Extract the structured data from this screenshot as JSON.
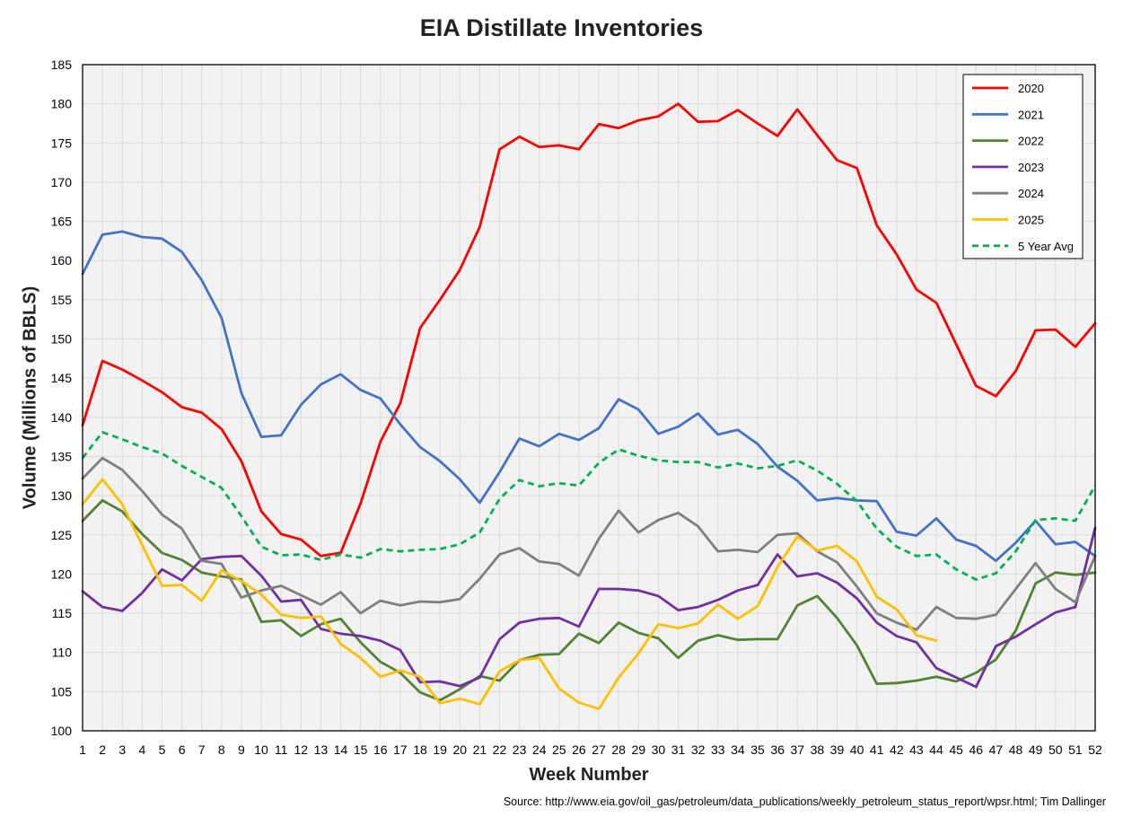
{
  "chart_data": {
    "type": "line",
    "title": "EIA Distillate Inventories",
    "xlabel": "Week Number",
    "ylabel": "Volume (Millions of BBLS)",
    "source": "Source: http://www.eia.gov/oil_gas/petroleum/data_publications/weekly_petroleum_status_report/wpsr.html; Tim Dallinger",
    "ylim": [
      100,
      185
    ],
    "yticks": [
      100,
      105,
      110,
      115,
      120,
      125,
      130,
      135,
      140,
      145,
      150,
      155,
      160,
      165,
      170,
      175,
      180,
      185
    ],
    "xlim": [
      1,
      52
    ],
    "xticks": [
      1,
      2,
      3,
      4,
      5,
      6,
      7,
      8,
      9,
      10,
      11,
      12,
      13,
      14,
      15,
      16,
      17,
      18,
      19,
      20,
      21,
      22,
      23,
      24,
      25,
      26,
      27,
      28,
      29,
      30,
      31,
      32,
      33,
      34,
      35,
      36,
      37,
      38,
      39,
      40,
      41,
      42,
      43,
      44,
      45,
      46,
      47,
      48,
      49,
      50,
      51,
      52
    ],
    "grid": true,
    "legend_position": "top-right",
    "series": [
      {
        "name": "2020",
        "color": "#ff0000",
        "dashed": false,
        "values": [
          139.0,
          147.2,
          146.1,
          144.7,
          143.2,
          141.3,
          140.6,
          138.5,
          134.4,
          128.0,
          125.1,
          124.4,
          122.3,
          122.7,
          129.0,
          136.9,
          141.8,
          151.4,
          155.0,
          158.8,
          164.3,
          174.2,
          175.8,
          174.5,
          174.7,
          174.2,
          177.4,
          176.9,
          177.9,
          178.4,
          180.0,
          177.7,
          177.8,
          179.2,
          177.5,
          175.9,
          179.3,
          176.0,
          172.8,
          171.8,
          164.5,
          160.8,
          156.3,
          154.6,
          149.3,
          144.0,
          142.7,
          145.9,
          151.1,
          151.2,
          149.0,
          152.0
        ]
      },
      {
        "name": "2021",
        "color": "#4472c4",
        "dashed": false,
        "values": [
          158.3,
          163.3,
          163.7,
          163.0,
          162.8,
          161.1,
          157.5,
          152.7,
          143.1,
          137.5,
          137.7,
          141.6,
          144.2,
          145.5,
          143.5,
          142.4,
          139.1,
          136.2,
          134.4,
          132.1,
          129.1,
          133.0,
          137.3,
          136.3,
          137.9,
          137.1,
          138.6,
          142.3,
          141.0,
          137.9,
          138.8,
          140.5,
          137.8,
          138.4,
          136.6,
          133.7,
          131.9,
          129.4,
          129.7,
          129.4,
          129.3,
          125.4,
          124.9,
          127.1,
          124.4,
          123.6,
          121.7,
          124.0,
          126.8,
          123.8,
          124.1,
          122.3
        ]
      },
      {
        "name": "2022",
        "color": "#548235",
        "dashed": false,
        "values": [
          126.8,
          129.4,
          128.0,
          125.1,
          122.7,
          121.8,
          120.2,
          119.7,
          119.3,
          113.9,
          114.1,
          112.1,
          113.6,
          114.3,
          111.3,
          108.8,
          107.4,
          104.9,
          103.9,
          105.3,
          107.0,
          106.4,
          109.0,
          109.7,
          109.8,
          112.4,
          111.2,
          113.8,
          112.5,
          111.8,
          109.3,
          111.5,
          112.2,
          111.6,
          111.7,
          111.7,
          116.0,
          117.2,
          114.4,
          110.9,
          106.0,
          106.1,
          106.4,
          106.9,
          106.3,
          107.4,
          109.1,
          112.8,
          118.8,
          120.2,
          119.9,
          120.2
        ]
      },
      {
        "name": "2023",
        "color": "#7030a0",
        "dashed": false,
        "values": [
          117.8,
          115.8,
          115.3,
          117.6,
          120.6,
          119.2,
          121.9,
          122.2,
          122.3,
          119.8,
          116.5,
          116.7,
          113.0,
          112.4,
          112.1,
          111.5,
          110.3,
          106.2,
          106.3,
          105.7,
          106.8,
          111.7,
          113.8,
          114.3,
          114.4,
          113.3,
          118.1,
          118.1,
          117.9,
          117.2,
          115.4,
          115.8,
          116.7,
          117.9,
          118.6,
          122.5,
          119.7,
          120.1,
          118.9,
          116.9,
          113.8,
          112.1,
          111.3,
          108.0,
          106.8,
          105.6,
          110.8,
          112.0,
          113.6,
          115.1,
          115.8,
          125.9
        ]
      },
      {
        "name": "2024",
        "color": "#7f7f7f",
        "dashed": false,
        "values": [
          132.2,
          134.8,
          133.3,
          130.6,
          127.6,
          125.8,
          121.7,
          121.3,
          117.0,
          117.9,
          118.5,
          117.3,
          116.1,
          117.7,
          115.0,
          116.6,
          116.0,
          116.5,
          116.4,
          116.8,
          119.4,
          122.5,
          123.3,
          121.6,
          121.3,
          119.8,
          124.5,
          128.1,
          125.3,
          126.9,
          127.8,
          126.1,
          122.9,
          123.1,
          122.8,
          125.0,
          125.2,
          122.9,
          121.5,
          118.4,
          115.0,
          113.8,
          112.9,
          115.8,
          114.4,
          114.3,
          114.8,
          118.1,
          121.4,
          118.1,
          116.4,
          122.3
        ]
      },
      {
        "name": "2025",
        "color": "#ffc000",
        "dashed": false,
        "values": [
          128.9,
          132.1,
          128.9,
          123.7,
          118.5,
          118.6,
          116.6,
          120.5,
          119.1,
          117.4,
          114.8,
          114.4,
          114.6,
          111.1,
          109.3,
          106.9,
          107.7,
          106.9,
          103.5,
          104.1,
          103.4,
          107.6,
          109.0,
          109.3,
          105.4,
          103.6,
          102.8,
          106.8,
          109.9,
          113.6,
          113.1,
          113.7,
          116.1,
          114.3,
          115.9,
          120.9,
          124.8,
          123.0,
          123.6,
          121.6,
          117.1,
          115.5,
          112.2,
          111.5
        ]
      },
      {
        "name": "5 Year Avg",
        "color": "#00b050",
        "dashed": true,
        "values": [
          134.8,
          138.1,
          137.2,
          136.2,
          135.4,
          133.8,
          132.4,
          131.0,
          127.4,
          123.5,
          122.4,
          122.5,
          121.8,
          122.5,
          122.1,
          123.2,
          122.9,
          123.1,
          123.2,
          123.8,
          125.3,
          129.6,
          132.0,
          131.2,
          131.6,
          131.3,
          134.2,
          135.9,
          135.1,
          134.5,
          134.3,
          134.3,
          133.6,
          134.1,
          133.5,
          133.8,
          134.5,
          133.2,
          131.5,
          129.3,
          125.8,
          123.5,
          122.3,
          122.5,
          120.6,
          119.3,
          120.1,
          122.9,
          126.9,
          127.1,
          126.8,
          131.3
        ]
      }
    ]
  }
}
